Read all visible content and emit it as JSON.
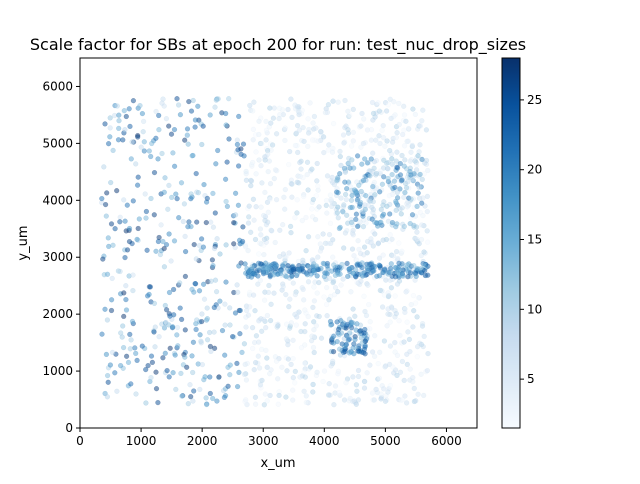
{
  "chart_data": {
    "type": "scatter",
    "title": "Scale factor for SBs at epoch 200 for run: test_nuc_drop_sizes",
    "xlabel": "x_um",
    "ylabel": "y_um",
    "xlim": [
      0,
      6500
    ],
    "ylim": [
      0,
      6500
    ],
    "x_ticks": [
      "0",
      "1000",
      "2000",
      "3000",
      "4000",
      "5000",
      "6000"
    ],
    "x_tick_values": [
      0,
      1000,
      2000,
      3000,
      4000,
      5000,
      6000
    ],
    "y_ticks": [
      "0",
      "1000",
      "2000",
      "3000",
      "4000",
      "5000",
      "6000"
    ],
    "y_tick_values": [
      0,
      1000,
      2000,
      3000,
      4000,
      5000,
      6000
    ],
    "grid": false,
    "colormap": "Blues",
    "marker_alpha": 0.5,
    "colorbar": {
      "min": 1.5,
      "max": 28,
      "ticks": [
        "5",
        "10",
        "15",
        "20",
        "25"
      ],
      "tick_values": [
        5,
        10,
        15,
        20,
        25
      ]
    },
    "point_regions": [
      {
        "x": [
          350,
          2700
        ],
        "y": [
          400,
          5800
        ],
        "value_range": [
          6,
          28
        ]
      },
      {
        "x": [
          2700,
          5700
        ],
        "y": [
          2650,
          2900
        ],
        "value_range": [
          12,
          24
        ]
      },
      {
        "x": [
          4200,
          5600
        ],
        "y": [
          3500,
          4800
        ],
        "value_range": [
          8,
          22
        ]
      },
      {
        "x": [
          4100,
          4700
        ],
        "y": [
          1300,
          1900
        ],
        "value_range": [
          12,
          26
        ]
      },
      {
        "x": [
          2700,
          5700
        ],
        "y": [
          400,
          5800
        ],
        "value_range": [
          1.5,
          10
        ]
      }
    ]
  }
}
